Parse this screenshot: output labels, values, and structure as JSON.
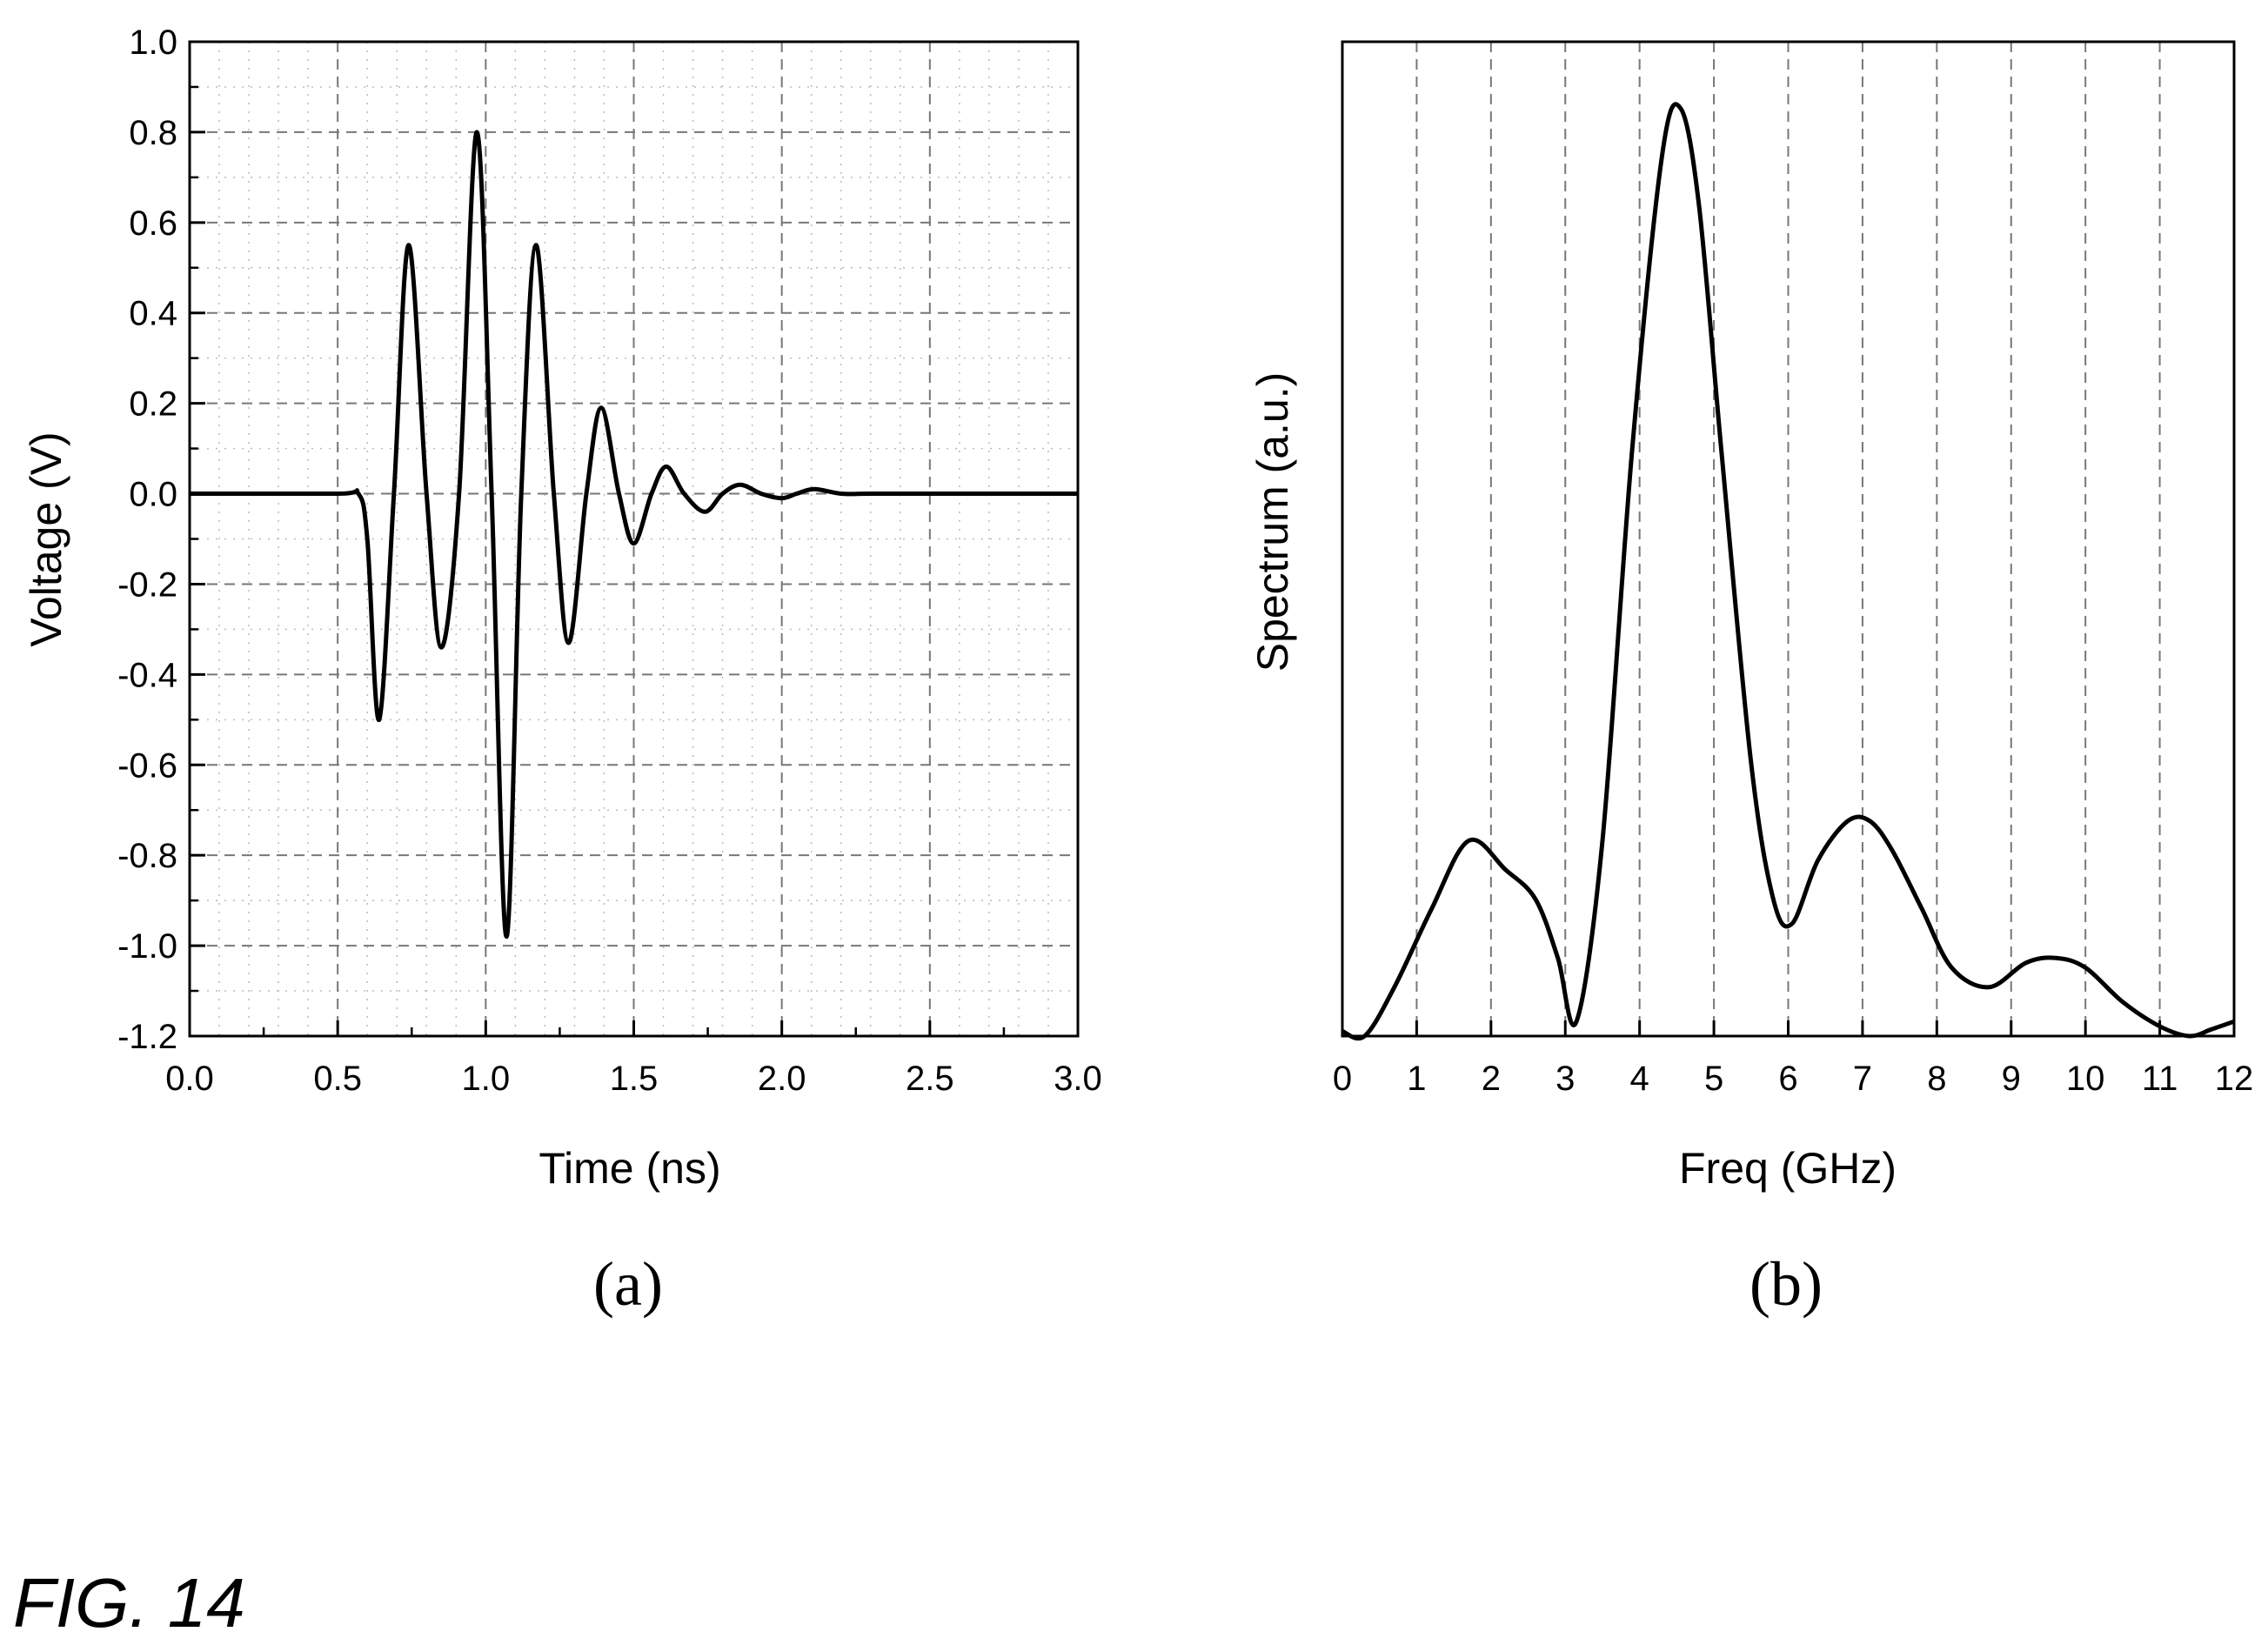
{
  "figure_label": "FIG. 14",
  "chart_data": [
    {
      "type": "line",
      "panel_label": "(a)",
      "xlabel": "Time (ns)",
      "ylabel": "Voltage (V)",
      "xlim": [
        0.0,
        3.0
      ],
      "ylim": [
        -1.2,
        1.0
      ],
      "xticks": [
        "0.0",
        "0.5",
        "1.0",
        "1.5",
        "2.0",
        "2.5",
        "3.0"
      ],
      "xtick_values": [
        0.0,
        0.5,
        1.0,
        1.5,
        2.0,
        2.5,
        3.0
      ],
      "yticks": [
        "1.0",
        "0.8",
        "0.6",
        "0.4",
        "0.2",
        "0.0",
        "-0.2",
        "-0.4",
        "-0.6",
        "-0.8",
        "-1.0",
        "-1.2"
      ],
      "ytick_values": [
        1.0,
        0.8,
        0.6,
        0.4,
        0.2,
        0.0,
        -0.2,
        -0.4,
        -0.6,
        -0.8,
        -1.0,
        -1.2
      ],
      "grid": true,
      "series": [
        {
          "color": "#000000",
          "x": [
            0.0,
            0.5,
            0.57,
            0.6,
            0.64,
            0.69,
            0.74,
            0.8,
            0.85,
            0.91,
            0.97,
            1.02,
            1.07,
            1.12,
            1.17,
            1.23,
            1.28,
            1.34,
            1.39,
            1.45,
            1.5,
            1.56,
            1.61,
            1.67,
            1.74,
            1.8,
            1.86,
            1.93,
            2.0,
            2.05,
            2.11,
            2.2,
            2.3,
            2.5,
            3.0
          ],
          "y": [
            0.0,
            0.0,
            0.0,
            -0.1,
            -0.5,
            0.0,
            0.55,
            0.0,
            -0.34,
            0.0,
            0.8,
            0.0,
            -0.98,
            0.0,
            0.55,
            0.0,
            -0.33,
            0.0,
            0.19,
            0.0,
            -0.11,
            0.0,
            0.06,
            0.0,
            -0.04,
            0.0,
            0.02,
            0.0,
            -0.01,
            0.0,
            0.01,
            0.0,
            0.0,
            0.0,
            0.0
          ]
        }
      ]
    },
    {
      "type": "line",
      "panel_label": "(b)",
      "xlabel": "Freq (GHz)",
      "ylabel": "Spectrum (a.u.)",
      "xlim": [
        0,
        12
      ],
      "ylim": [
        0,
        1.0
      ],
      "xticks": [
        "0",
        "1",
        "2",
        "3",
        "4",
        "5",
        "6",
        "7",
        "8",
        "9",
        "10",
        "11",
        "12"
      ],
      "xtick_values": [
        0,
        1,
        2,
        3,
        4,
        5,
        6,
        7,
        8,
        9,
        10,
        11,
        12
      ],
      "yticks": [],
      "grid": true,
      "series": [
        {
          "color": "#000000",
          "x": [
            0.0,
            0.3,
            0.7,
            1.2,
            1.7,
            2.2,
            2.6,
            2.9,
            3.15,
            3.5,
            3.9,
            4.3,
            4.55,
            4.8,
            5.1,
            5.5,
            5.8,
            6.05,
            6.4,
            6.8,
            7.1,
            7.4,
            7.8,
            8.2,
            8.7,
            9.2,
            9.6,
            10.0,
            10.5,
            11.0,
            11.4,
            11.7,
            12.0
          ],
          "y": [
            0.005,
            0.0,
            0.05,
            0.13,
            0.2,
            0.17,
            0.14,
            0.08,
            0.015,
            0.2,
            0.6,
            0.9,
            0.95,
            0.85,
            0.6,
            0.28,
            0.14,
            0.115,
            0.18,
            0.22,
            0.22,
            0.19,
            0.13,
            0.07,
            0.05,
            0.075,
            0.08,
            0.07,
            0.035,
            0.01,
            0.0,
            0.007,
            0.015
          ]
        }
      ]
    }
  ]
}
